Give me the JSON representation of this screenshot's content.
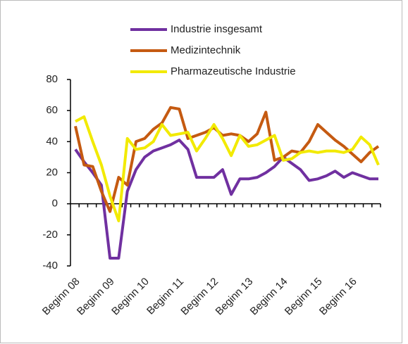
{
  "chart_data": {
    "type": "line",
    "categories": [
      "Beginn 08",
      null,
      null,
      null,
      "Beginn 09",
      null,
      null,
      null,
      "Beginn 10",
      null,
      null,
      null,
      "Beginn 11",
      null,
      null,
      null,
      "Beginn 12",
      null,
      null,
      null,
      "Beginn 13",
      null,
      null,
      null,
      "Beginn 14",
      null,
      null,
      null,
      "Beginn 15",
      null,
      null,
      null,
      "Beginn 16",
      null,
      null,
      null
    ],
    "series": [
      {
        "name": "Industrie insgesamt",
        "color": "#7030a0",
        "values": [
          35,
          27,
          20,
          12,
          -35,
          -35,
          8,
          22,
          30,
          34,
          36,
          38,
          41,
          35,
          17,
          17,
          17,
          22,
          6,
          16,
          16,
          17,
          20,
          24,
          30,
          26,
          22,
          15,
          16,
          18,
          21,
          17,
          20,
          18,
          16,
          16
        ]
      },
      {
        "name": "Medizintechnik",
        "color": "#c55a11",
        "values": [
          50,
          25,
          24,
          8,
          -5,
          17,
          12,
          40,
          42,
          48,
          52,
          62,
          61,
          42,
          44,
          46,
          49,
          44,
          45,
          44,
          40,
          45,
          59,
          28,
          30,
          34,
          33,
          40,
          51,
          46,
          41,
          37,
          32,
          27,
          33,
          37
        ]
      },
      {
        "name": "Pharmazeutische Industrie",
        "color": "#f2ea00",
        "values": [
          53,
          56,
          40,
          25,
          5,
          -11,
          42,
          35,
          36,
          40,
          51,
          44,
          45,
          46,
          34,
          42,
          51,
          42,
          31,
          44,
          37,
          38,
          41,
          44,
          28,
          29,
          33,
          34,
          33,
          34,
          34,
          33,
          35,
          43,
          38,
          25
        ]
      }
    ],
    "ylim": [
      -40,
      80
    ],
    "yticks": [
      -40,
      -20,
      0,
      20,
      40,
      60,
      80
    ],
    "grid": false
  }
}
